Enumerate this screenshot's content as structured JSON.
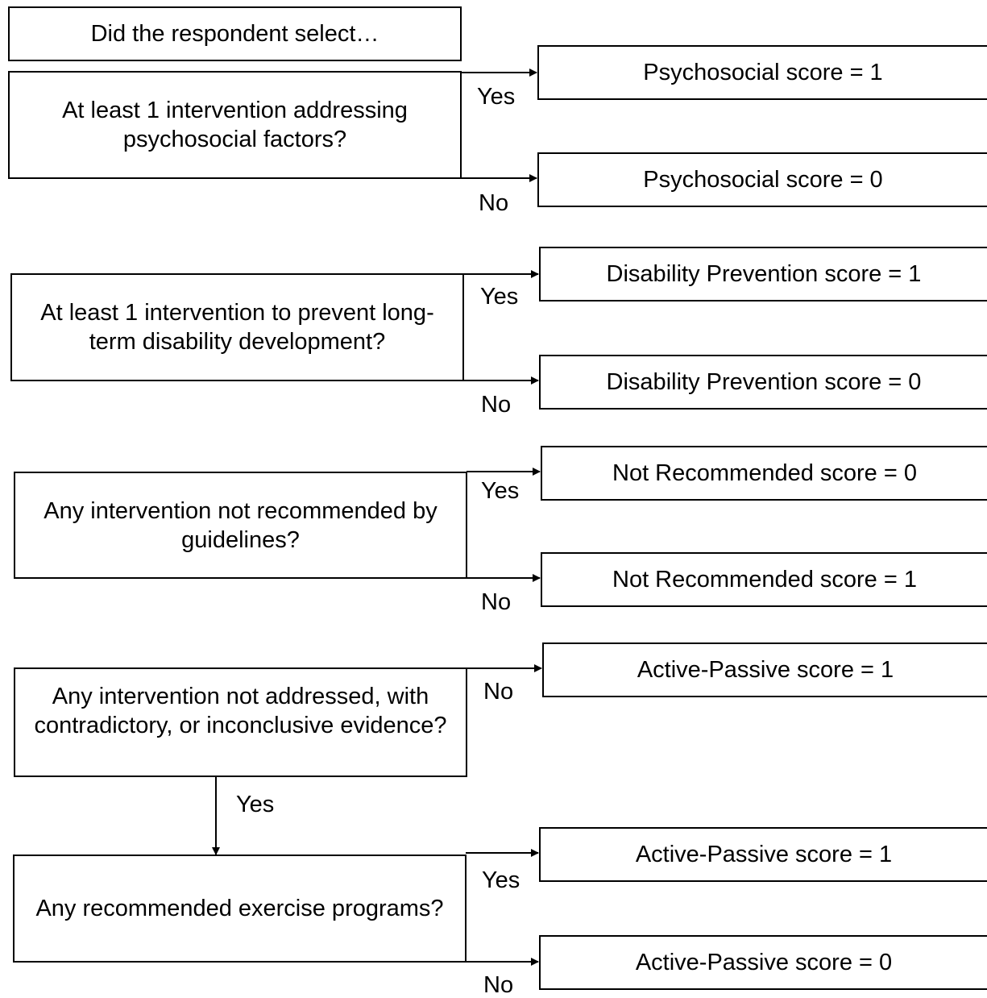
{
  "header": {
    "text": "Did the respondent select…"
  },
  "blocks": [
    {
      "question": "At least 1 intervention addressing psychosocial factors?",
      "upper_branch": "Yes",
      "lower_branch": "No",
      "upper_outcome": "Psychosocial score = 1",
      "lower_outcome": "Psychosocial score = 0"
    },
    {
      "question": "At least 1 intervention to prevent long-term disability development?",
      "upper_branch": "Yes",
      "lower_branch": "No",
      "upper_outcome": "Disability Prevention score = 1",
      "lower_outcome": "Disability Prevention score = 0"
    },
    {
      "question": "Any intervention not recommended by guidelines?",
      "upper_branch": "Yes",
      "lower_branch": "No",
      "upper_outcome": "Not Recommended score = 0",
      "lower_outcome": "Not Recommended score = 1"
    },
    {
      "question": "Any intervention not addressed, with contradictory, or inconclusive evidence?",
      "upper_branch": "No",
      "down_branch": "Yes",
      "upper_outcome": "Active-Passive score = 1"
    },
    {
      "question": "Any recommended exercise programs?",
      "upper_branch": "Yes",
      "lower_branch": "No",
      "upper_outcome": "Active-Passive score = 1",
      "lower_outcome": "Active-Passive score = 0"
    }
  ]
}
